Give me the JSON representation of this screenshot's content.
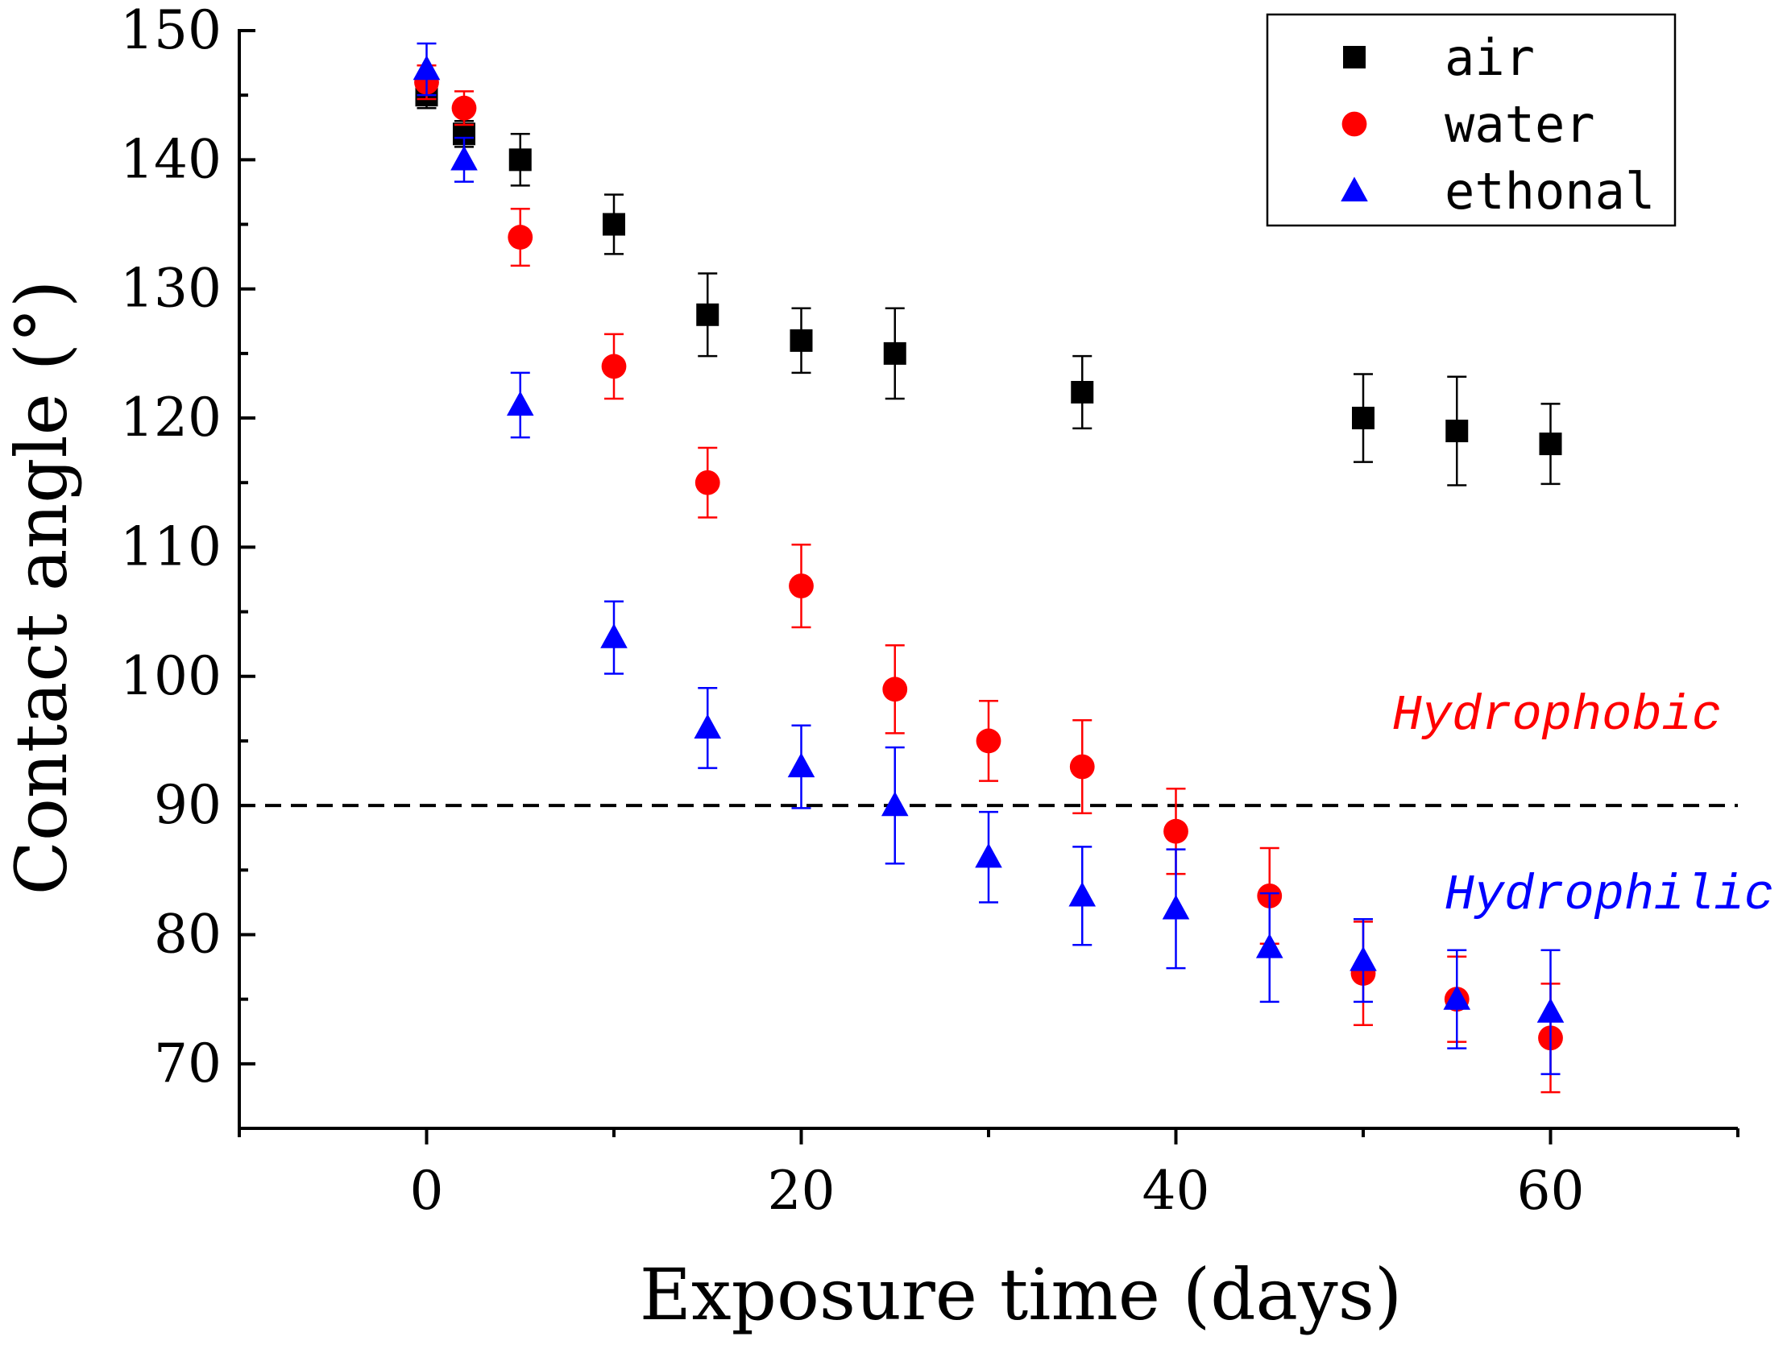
{
  "chart_data": {
    "type": "scatter",
    "xlabel": "Exposure time (days)",
    "ylabel": "Contact angle (°)",
    "xlim": [
      -10,
      70
    ],
    "ylim": [
      65,
      150
    ],
    "xticks": [
      0,
      20,
      40,
      60
    ],
    "xminor_ticks": [
      -10,
      10,
      30,
      50,
      70
    ],
    "yticks": [
      70,
      80,
      90,
      100,
      110,
      120,
      130,
      140,
      150
    ],
    "threshold": {
      "value": 90,
      "style": "dashed",
      "above_label": "Hydrophobic",
      "below_label": "Hydrophilic",
      "above_color": "#ff0000",
      "below_color": "#0000ff"
    },
    "legend_position": "top-right",
    "series": [
      {
        "name": "air",
        "marker": "square",
        "color": "#000000",
        "points": [
          {
            "x": 0,
            "y": 145,
            "err": 1
          },
          {
            "x": 2,
            "y": 142,
            "err": 1
          },
          {
            "x": 5,
            "y": 140,
            "err": 2
          },
          {
            "x": 10,
            "y": 135,
            "err": 2.3
          },
          {
            "x": 15,
            "y": 128,
            "err": 3.2
          },
          {
            "x": 20,
            "y": 126,
            "err": 2.5
          },
          {
            "x": 25,
            "y": 125,
            "err": 3.5
          },
          {
            "x": 35,
            "y": 122,
            "err": 2.8
          },
          {
            "x": 50,
            "y": 120,
            "err": 3.4
          },
          {
            "x": 55,
            "y": 119,
            "err": 4.2
          },
          {
            "x": 60,
            "y": 118,
            "err": 3.1
          }
        ]
      },
      {
        "name": "water",
        "marker": "circle",
        "color": "#ff0000",
        "points": [
          {
            "x": 0,
            "y": 146,
            "err": 1.3
          },
          {
            "x": 2,
            "y": 144,
            "err": 1.3
          },
          {
            "x": 5,
            "y": 134,
            "err": 2.2
          },
          {
            "x": 10,
            "y": 124,
            "err": 2.5
          },
          {
            "x": 15,
            "y": 115,
            "err": 2.7
          },
          {
            "x": 20,
            "y": 107,
            "err": 3.2
          },
          {
            "x": 25,
            "y": 99,
            "err": 3.4
          },
          {
            "x": 30,
            "y": 95,
            "err": 3.1
          },
          {
            "x": 35,
            "y": 93,
            "err": 3.6
          },
          {
            "x": 40,
            "y": 88,
            "err": 3.3
          },
          {
            "x": 45,
            "y": 83,
            "err": 3.7
          },
          {
            "x": 50,
            "y": 77,
            "err": 4
          },
          {
            "x": 55,
            "y": 75,
            "err": 3.3
          },
          {
            "x": 60,
            "y": 72,
            "err": 4.2
          }
        ]
      },
      {
        "name": "ethonal",
        "marker": "triangle",
        "color": "#0000ff",
        "points": [
          {
            "x": 0,
            "y": 147,
            "err": 2
          },
          {
            "x": 2,
            "y": 140,
            "err": 1.7
          },
          {
            "x": 5,
            "y": 121,
            "err": 2.5
          },
          {
            "x": 10,
            "y": 103,
            "err": 2.8
          },
          {
            "x": 15,
            "y": 96,
            "err": 3.1
          },
          {
            "x": 20,
            "y": 93,
            "err": 3.2
          },
          {
            "x": 25,
            "y": 90,
            "err": 4.5
          },
          {
            "x": 30,
            "y": 86,
            "err": 3.5
          },
          {
            "x": 35,
            "y": 83,
            "err": 3.8
          },
          {
            "x": 40,
            "y": 82,
            "err": 4.6
          },
          {
            "x": 45,
            "y": 79,
            "err": 4.2
          },
          {
            "x": 50,
            "y": 78,
            "err": 3.2
          },
          {
            "x": 55,
            "y": 75,
            "err": 3.8
          },
          {
            "x": 60,
            "y": 74,
            "err": 4.8
          }
        ]
      }
    ]
  }
}
